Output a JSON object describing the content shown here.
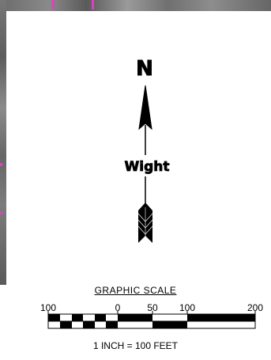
{
  "north_arrow": {
    "north_label": "N",
    "company_label": "Wight"
  },
  "graphic_scale": {
    "title": "GRAPHIC SCALE",
    "ticks": [
      "100",
      "0",
      "50",
      "100",
      "200"
    ],
    "note": "1 INCH = 100 FEET"
  },
  "colors": {
    "ink": "#000000",
    "paper": "#ffffff",
    "aerial": "#777777",
    "marker": "#e040c0"
  }
}
